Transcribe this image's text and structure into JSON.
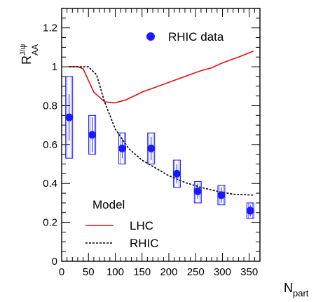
{
  "chart_data": {
    "type": "scatter",
    "xlabel": {
      "main": "N",
      "sub": "part"
    },
    "ylabel": {
      "main": "R",
      "sup": "J/ψ",
      "sub": "AA"
    },
    "xlim": [
      0,
      370
    ],
    "ylim": [
      0,
      1.3
    ],
    "x_ticks": [
      0,
      50,
      100,
      150,
      200,
      250,
      300,
      350
    ],
    "y_ticks": [
      0,
      0.2,
      0.4,
      0.6,
      0.8,
      1,
      1.2
    ],
    "y_tick_labels": [
      "0",
      "0.2",
      "0.4",
      "0.6",
      "0.8",
      "1",
      "1.2"
    ],
    "grid": false,
    "data_legend": {
      "label": "RHIC data",
      "placement": "top-center"
    },
    "model_legend": {
      "title": "Model",
      "placement": "bottom-left"
    },
    "series": [
      {
        "name": "RHIC data",
        "kind": "points",
        "color": "#1a1aff",
        "points": [
          {
            "x": 14,
            "y": 0.74,
            "stat": 0.12,
            "sys": [
              0.53,
              0.95
            ]
          },
          {
            "x": 57,
            "y": 0.65,
            "stat": 0.09,
            "sys": [
              0.55,
              0.75
            ]
          },
          {
            "x": 113,
            "y": 0.58,
            "stat": 0.05,
            "sys": [
              0.5,
              0.66
            ]
          },
          {
            "x": 167,
            "y": 0.58,
            "stat": 0.06,
            "sys": [
              0.5,
              0.66
            ]
          },
          {
            "x": 215,
            "y": 0.45,
            "stat": 0.05,
            "sys": [
              0.38,
              0.52
            ]
          },
          {
            "x": 254,
            "y": 0.36,
            "stat": 0.04,
            "sys": [
              0.3,
              0.41
            ]
          },
          {
            "x": 298,
            "y": 0.34,
            "stat": 0.04,
            "sys": [
              0.29,
              0.39
            ]
          },
          {
            "x": 352,
            "y": 0.26,
            "stat": 0.03,
            "sys": [
              0.22,
              0.3
            ]
          }
        ]
      },
      {
        "name": "LHC",
        "kind": "line",
        "style": "solid",
        "color": "#e01010",
        "x": [
          14,
          30,
          40,
          60,
          80,
          95,
          100,
          120,
          150,
          175,
          200,
          230,
          260,
          280,
          300,
          330,
          358
        ],
        "y": [
          1.0,
          1.0,
          0.99,
          0.87,
          0.82,
          0.815,
          0.815,
          0.83,
          0.87,
          0.895,
          0.92,
          0.95,
          0.98,
          0.995,
          1.02,
          1.05,
          1.08
        ]
      },
      {
        "name": "RHIC",
        "kind": "line",
        "style": "dashed",
        "color": "#000000",
        "x": [
          14,
          30,
          50,
          65,
          80,
          100,
          125,
          150,
          175,
          200,
          230,
          260,
          290,
          320,
          358
        ],
        "y": [
          1.0,
          1.0,
          1.0,
          0.96,
          0.82,
          0.68,
          0.58,
          0.52,
          0.48,
          0.44,
          0.405,
          0.38,
          0.36,
          0.345,
          0.34
        ]
      }
    ]
  }
}
